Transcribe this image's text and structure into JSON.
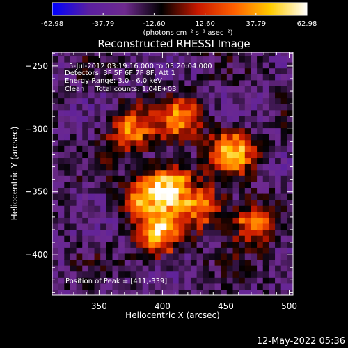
{
  "chart_data": {
    "type": "heatmap",
    "title": "Reconstructed RHESSI Image",
    "xlabel": "Heliocentric X (arcsec)",
    "ylabel": "Heliocentric Y (arcsec)",
    "xlim": [
      313,
      503
    ],
    "ylim": [
      -432,
      -239
    ],
    "xticks": [
      350,
      400,
      450,
      500
    ],
    "yticks": [
      -250,
      -300,
      -350,
      -400
    ],
    "colorbar": {
      "min": -62.98,
      "max": 62.98,
      "ticks": [
        "-62.98",
        "-37.79",
        "-12.60",
        "12.60",
        "37.79",
        "62.98"
      ],
      "unit_label": "(photons cm⁻² s⁻¹ asec⁻²)",
      "colormap": [
        "#0000ff",
        "#5a1fa0",
        "#6e2a8e",
        "#000000",
        "#c81800",
        "#ff6000",
        "#ffcc00",
        "#ffffff"
      ]
    },
    "annotations": [
      "5-Jul-2012 03:19:16.000 to 03:20:04.000",
      "Detectors: 3F 5F 6F 7F 8F, Att 1",
      "Energy Range: 3.0 - 6.0 keV",
      "Clean     Total counts: 1.04E+03"
    ],
    "peak_label": "Position of Peak = [411,-339]",
    "peak": [
      411,
      -339
    ],
    "sources": [
      {
        "x": 405,
        "y": -345,
        "peak": 60
      },
      {
        "x": 397,
        "y": -383,
        "peak": 52
      },
      {
        "x": 455,
        "y": -318,
        "peak": 45
      },
      {
        "x": 375,
        "y": -300,
        "peak": 38
      },
      {
        "x": 470,
        "y": -375,
        "peak": 36
      },
      {
        "x": 415,
        "y": -292,
        "peak": 34
      },
      {
        "x": 430,
        "y": -362,
        "peak": 30
      },
      {
        "x": 385,
        "y": -355,
        "peak": 26
      }
    ],
    "background_level": -22
  },
  "footer": {
    "timestamp": "12-May-2022 05:36"
  }
}
